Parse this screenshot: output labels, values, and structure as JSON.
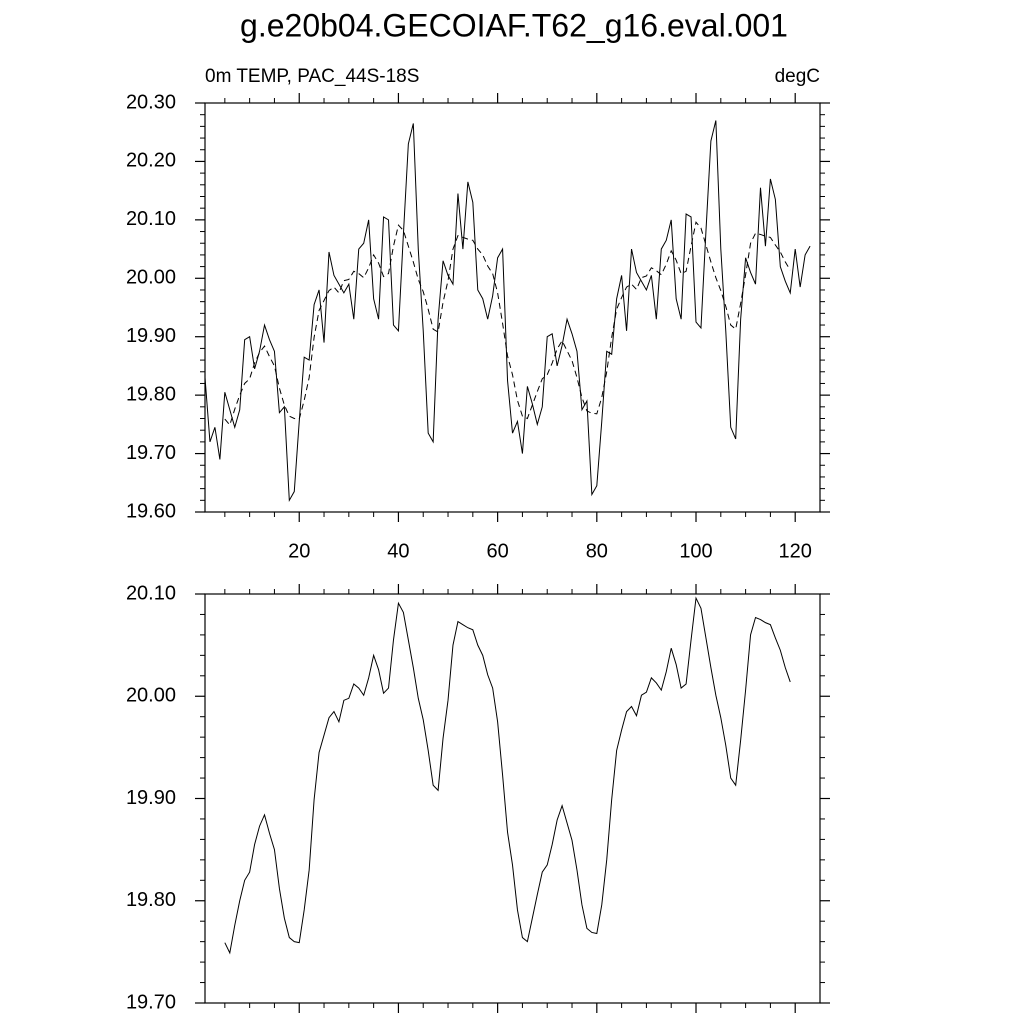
{
  "chart_data": [
    {
      "type": "line",
      "title": "g.e20b04.GECOIAF.T62_g16.eval.001",
      "subtitle": "0m TEMP, PAC_44S-18S",
      "units": "degC",
      "xlim": [
        1,
        125
      ],
      "xticks": [
        20,
        40,
        60,
        80,
        100,
        120
      ],
      "xminorticks": [
        5,
        10,
        15,
        25,
        30,
        35,
        45,
        50,
        55,
        65,
        70,
        75,
        85,
        90,
        95,
        105,
        110,
        115
      ],
      "ylim": [
        19.6,
        20.3
      ],
      "yticks": [
        {
          "value": 19.6,
          "label": "19.60"
        },
        {
          "value": 19.7,
          "label": "19.70"
        },
        {
          "value": 19.8,
          "label": "19.80"
        },
        {
          "value": 19.9,
          "label": "19.90"
        },
        {
          "value": 20.0,
          "label": "20.00"
        },
        {
          "value": 20.1,
          "label": "20.10"
        },
        {
          "value": 20.2,
          "label": "20.20"
        },
        {
          "value": 20.3,
          "label": "20.30"
        }
      ],
      "yminorticks": [
        19.62,
        19.64,
        19.66,
        19.68,
        19.72,
        19.74,
        19.76,
        19.78,
        19.82,
        19.84,
        19.86,
        19.88,
        19.92,
        19.94,
        19.96,
        19.98,
        20.02,
        20.04,
        20.06,
        20.08,
        20.12,
        20.14,
        20.16,
        20.18,
        20.22,
        20.24,
        20.26,
        20.28
      ],
      "series": [
        {
          "color": "#000000",
          "dash": "none",
          "x": [
            1,
            2,
            3,
            4,
            5,
            6,
            7,
            8,
            9,
            10,
            11,
            12,
            13,
            14,
            15,
            16,
            17,
            18,
            19,
            20,
            21,
            22,
            23,
            24,
            25,
            26,
            27,
            28,
            29,
            30,
            31,
            32,
            33,
            34,
            35,
            36,
            37,
            38,
            39,
            40,
            41,
            42,
            43,
            44,
            45,
            46,
            47,
            48,
            49,
            50,
            51,
            52,
            53,
            54,
            55,
            56,
            57,
            58,
            59,
            60,
            61,
            62,
            63,
            64,
            65,
            66,
            67,
            68,
            69,
            70,
            71,
            72,
            73,
            74,
            75,
            76,
            77,
            78,
            79,
            80,
            81,
            82,
            83,
            84,
            85,
            86,
            87,
            88,
            89,
            90,
            91,
            92,
            93,
            94,
            95,
            96,
            97,
            98,
            99,
            100,
            101,
            102,
            103,
            104,
            105,
            106,
            107,
            108,
            109,
            110,
            111,
            112,
            113,
            114,
            115,
            116,
            117,
            118,
            119,
            120,
            121,
            122,
            123
          ],
          "values": [
            19.83,
            19.72,
            19.745,
            19.69,
            19.805,
            19.775,
            19.745,
            19.775,
            19.895,
            19.9,
            19.845,
            19.875,
            19.92,
            19.895,
            19.875,
            19.77,
            19.78,
            19.62,
            19.635,
            19.755,
            19.865,
            19.86,
            19.955,
            19.98,
            19.89,
            20.045,
            20.005,
            19.99,
            19.975,
            19.99,
            19.93,
            20.05,
            20.06,
            20.1,
            19.965,
            19.93,
            20.105,
            20.1,
            19.92,
            19.91,
            20.075,
            20.23,
            20.265,
            20.05,
            19.91,
            19.735,
            19.72,
            19.93,
            20.03,
            20.005,
            19.99,
            20.145,
            20.05,
            20.165,
            20.13,
            19.98,
            19.965,
            19.93,
            19.97,
            20.035,
            20.05,
            19.825,
            19.735,
            19.755,
            19.7,
            19.815,
            19.785,
            19.75,
            19.78,
            19.9,
            19.905,
            19.85,
            19.885,
            19.93,
            19.905,
            19.875,
            19.775,
            19.79,
            19.63,
            19.645,
            19.755,
            19.875,
            19.87,
            19.965,
            20.005,
            19.91,
            20.05,
            20.01,
            19.995,
            19.98,
            20.005,
            19.93,
            20.05,
            20.065,
            20.1,
            19.965,
            19.93,
            20.11,
            20.105,
            19.925,
            19.915,
            20.08,
            20.235,
            20.27,
            20.05,
            19.91,
            19.745,
            19.725,
            19.93,
            20.035,
            20.01,
            19.99,
            20.155,
            20.055,
            20.17,
            20.135,
            20.02,
            19.995,
            19.975,
            20.05,
            19.985,
            20.04,
            20.055
          ]
        },
        {
          "color": "#000000",
          "dash": "6 4",
          "x": [
            5,
            6,
            7,
            8,
            9,
            10,
            11,
            12,
            13,
            14,
            15,
            16,
            17,
            18,
            19,
            20,
            21,
            22,
            23,
            24,
            25,
            26,
            27,
            28,
            29,
            30,
            31,
            32,
            33,
            34,
            35,
            36,
            37,
            38,
            39,
            40,
            41,
            42,
            43,
            44,
            45,
            46,
            47,
            48,
            49,
            50,
            51,
            52,
            53,
            54,
            55,
            56,
            57,
            58,
            59,
            60,
            61,
            62,
            63,
            64,
            65,
            66,
            67,
            68,
            69,
            70,
            71,
            72,
            73,
            74,
            75,
            76,
            77,
            78,
            79,
            80,
            81,
            82,
            83,
            84,
            85,
            86,
            87,
            88,
            89,
            90,
            91,
            92,
            93,
            94,
            95,
            96,
            97,
            98,
            99,
            100,
            101,
            102,
            103,
            104,
            105,
            106,
            107,
            108,
            109,
            110,
            111,
            112,
            113,
            114,
            115,
            116,
            117,
            118,
            119
          ],
          "values": [
            19.759,
            19.749,
            19.776,
            19.8,
            19.82,
            19.828,
            19.855,
            19.873,
            19.884,
            19.866,
            19.85,
            19.812,
            19.783,
            19.764,
            19.76,
            19.759,
            19.791,
            19.83,
            19.899,
            19.945,
            19.962,
            19.979,
            19.985,
            19.975,
            19.996,
            19.998,
            20.012,
            20.008,
            20.001,
            20.018,
            20.04,
            20.026,
            20.003,
            20.008,
            20.055,
            20.091,
            20.082,
            20.055,
            20.028,
            19.998,
            19.977,
            19.947,
            19.913,
            19.908,
            19.959,
            19.996,
            20.05,
            20.073,
            20.07,
            20.067,
            20.065,
            20.05,
            20.04,
            20.021,
            20.008,
            19.975,
            19.923,
            19.867,
            19.835,
            19.791,
            19.764,
            19.76,
            19.783,
            19.806,
            19.828,
            19.835,
            19.855,
            19.879,
            19.893,
            19.876,
            19.859,
            19.83,
            19.796,
            19.773,
            19.769,
            19.768,
            19.796,
            19.84,
            19.899,
            19.947,
            19.967,
            19.985,
            19.99,
            19.981,
            20.001,
            20.004,
            20.018,
            20.013,
            20.006,
            20.024,
            20.047,
            20.031,
            20.008,
            20.012,
            20.055,
            20.096,
            20.086,
            20.057,
            20.028,
            20.001,
            19.979,
            19.952,
            19.92,
            19.913,
            19.957,
            20.006,
            20.06,
            20.077,
            20.075,
            20.072,
            20.07,
            20.057,
            20.045,
            20.028,
            20.014
          ]
        }
      ]
    },
    {
      "type": "line",
      "xlim": [
        1,
        125
      ],
      "xticks": [
        20,
        40,
        60,
        80,
        100,
        120
      ],
      "xminorticks": [
        5,
        10,
        15,
        25,
        30,
        35,
        45,
        50,
        55,
        65,
        70,
        75,
        85,
        90,
        95,
        105,
        110,
        115
      ],
      "ylim": [
        19.7,
        20.1
      ],
      "yticks": [
        {
          "value": 19.7,
          "label": "19.70"
        },
        {
          "value": 19.8,
          "label": "19.80"
        },
        {
          "value": 19.9,
          "label": "19.90"
        },
        {
          "value": 20.0,
          "label": "20.00"
        },
        {
          "value": 20.1,
          "label": "20.10"
        }
      ],
      "yminorticks": [
        19.72,
        19.74,
        19.76,
        19.78,
        19.82,
        19.84,
        19.86,
        19.88,
        19.92,
        19.94,
        19.96,
        19.98,
        20.02,
        20.04,
        20.06,
        20.08
      ],
      "series": [
        {
          "color": "#000000",
          "dash": "none",
          "x": [
            5,
            6,
            7,
            8,
            9,
            10,
            11,
            12,
            13,
            14,
            15,
            16,
            17,
            18,
            19,
            20,
            21,
            22,
            23,
            24,
            25,
            26,
            27,
            28,
            29,
            30,
            31,
            32,
            33,
            34,
            35,
            36,
            37,
            38,
            39,
            40,
            41,
            42,
            43,
            44,
            45,
            46,
            47,
            48,
            49,
            50,
            51,
            52,
            53,
            54,
            55,
            56,
            57,
            58,
            59,
            60,
            61,
            62,
            63,
            64,
            65,
            66,
            67,
            68,
            69,
            70,
            71,
            72,
            73,
            74,
            75,
            76,
            77,
            78,
            79,
            80,
            81,
            82,
            83,
            84,
            85,
            86,
            87,
            88,
            89,
            90,
            91,
            92,
            93,
            94,
            95,
            96,
            97,
            98,
            99,
            100,
            101,
            102,
            103,
            104,
            105,
            106,
            107,
            108,
            109,
            110,
            111,
            112,
            113,
            114,
            115,
            116,
            117,
            118,
            119
          ],
          "values": [
            19.759,
            19.749,
            19.776,
            19.8,
            19.82,
            19.828,
            19.855,
            19.873,
            19.884,
            19.866,
            19.85,
            19.812,
            19.783,
            19.764,
            19.76,
            19.759,
            19.791,
            19.83,
            19.899,
            19.945,
            19.962,
            19.979,
            19.985,
            19.975,
            19.996,
            19.998,
            20.012,
            20.008,
            20.001,
            20.018,
            20.04,
            20.026,
            20.003,
            20.008,
            20.055,
            20.091,
            20.082,
            20.055,
            20.028,
            19.998,
            19.977,
            19.947,
            19.913,
            19.908,
            19.959,
            19.996,
            20.05,
            20.073,
            20.07,
            20.067,
            20.065,
            20.05,
            20.04,
            20.021,
            20.008,
            19.975,
            19.923,
            19.867,
            19.835,
            19.791,
            19.764,
            19.76,
            19.783,
            19.806,
            19.828,
            19.835,
            19.855,
            19.879,
            19.893,
            19.876,
            19.859,
            19.83,
            19.796,
            19.773,
            19.769,
            19.768,
            19.796,
            19.84,
            19.899,
            19.947,
            19.967,
            19.985,
            19.99,
            19.981,
            20.001,
            20.004,
            20.018,
            20.013,
            20.006,
            20.024,
            20.047,
            20.031,
            20.008,
            20.012,
            20.055,
            20.096,
            20.086,
            20.057,
            20.028,
            20.001,
            19.979,
            19.952,
            19.92,
            19.913,
            19.957,
            20.006,
            20.06,
            20.077,
            20.075,
            20.072,
            20.07,
            20.057,
            20.045,
            20.028,
            20.014
          ]
        }
      ]
    }
  ]
}
